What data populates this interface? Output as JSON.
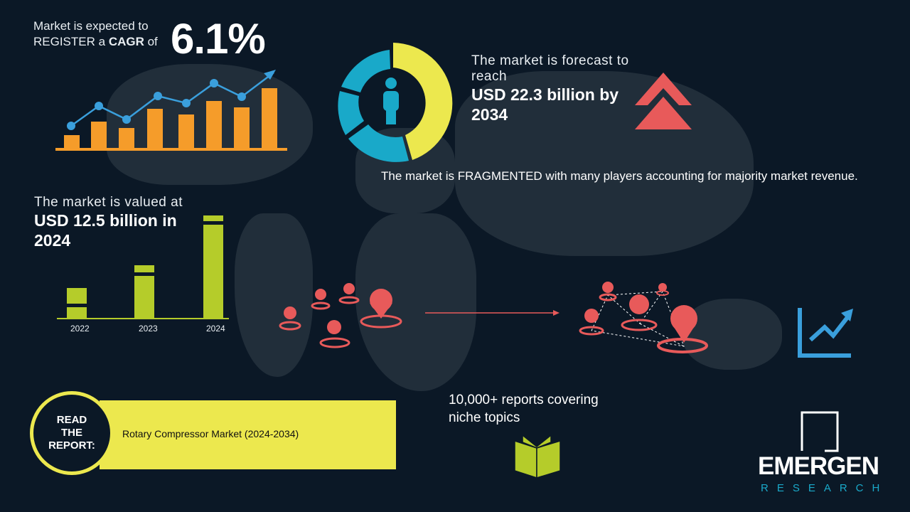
{
  "cagr": {
    "line1": "Market is expected to",
    "line2_pre": "REGISTER a ",
    "line2_bold": "CAGR",
    "line2_post": " of",
    "value": "6.1%"
  },
  "forecast": {
    "line": "The market is forecast to reach",
    "value": "USD 22.3 billion by 2034"
  },
  "fragmented": {
    "text": "The market is FRAGMENTED with many players accounting for majority market revenue."
  },
  "valued": {
    "line": "The market is valued at",
    "value": "USD 12.5 billion in 2024",
    "years": [
      "2022",
      "2023",
      "2024"
    ]
  },
  "reports": {
    "text": "10,000+ reports covering niche topics"
  },
  "read": {
    "label": "READ THE REPORT:",
    "title": "Rotary Compressor Market (2024-2034)"
  },
  "logo": {
    "name": "EMERGEN",
    "sub": "RESEARCH"
  },
  "colors": {
    "background": "#0b1826",
    "orange": "#f59c2a",
    "blue": "#3a9fdc",
    "yellow": "#ece84e",
    "green": "#b5cc2a",
    "red": "#e85a5a",
    "cyan": "#19a9c9"
  }
}
